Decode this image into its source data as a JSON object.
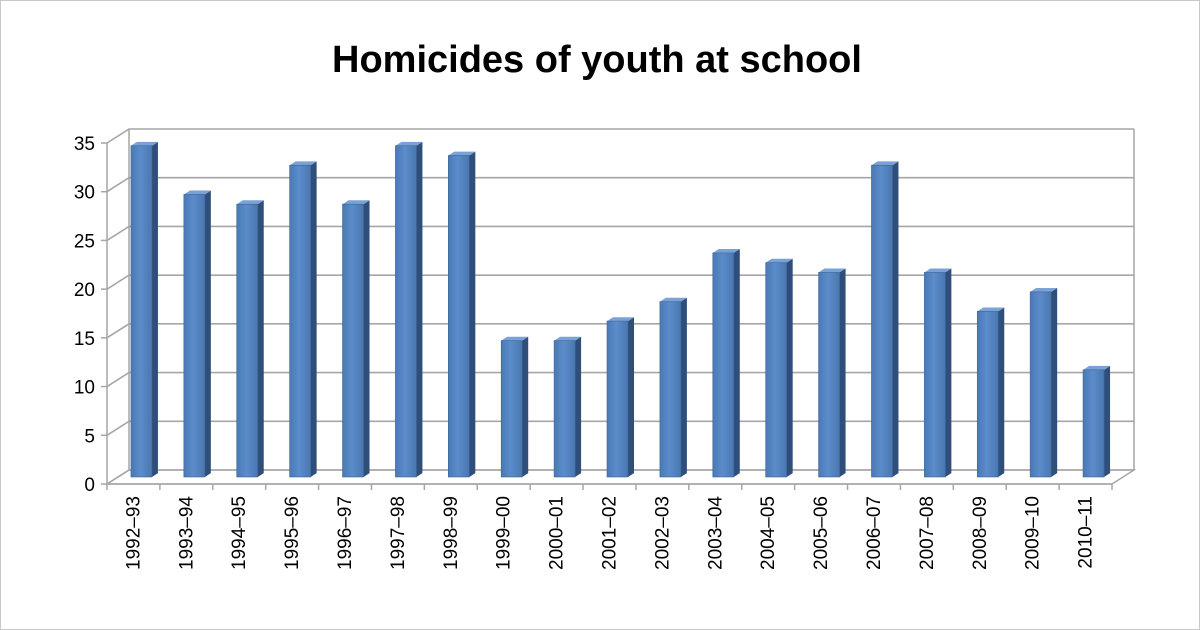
{
  "chart_data": {
    "type": "bar",
    "title": "Homicides of youth at school",
    "xlabel": "",
    "ylabel": "",
    "categories": [
      "1992–93",
      "1993–94",
      "1994–95",
      "1995–96",
      "1996–97",
      "1997–98",
      "1998–99",
      "1999–00",
      "2000–01",
      "2001–02",
      "2002–03",
      "2003–04",
      "2004–05",
      "2005–06",
      "2006–07",
      "2007–08",
      "2008–09",
      "2009–10",
      "2010–11"
    ],
    "values": [
      34,
      29,
      28,
      32,
      28,
      34,
      33,
      14,
      14,
      16,
      18,
      23,
      22,
      21,
      32,
      21,
      17,
      19,
      11
    ],
    "ylim": [
      0,
      35
    ],
    "yticks": [
      0,
      5,
      10,
      15,
      20,
      25,
      30,
      35
    ],
    "grid": true,
    "legend": "none",
    "style": "3d-column",
    "bar_color": "#4f81bd"
  }
}
